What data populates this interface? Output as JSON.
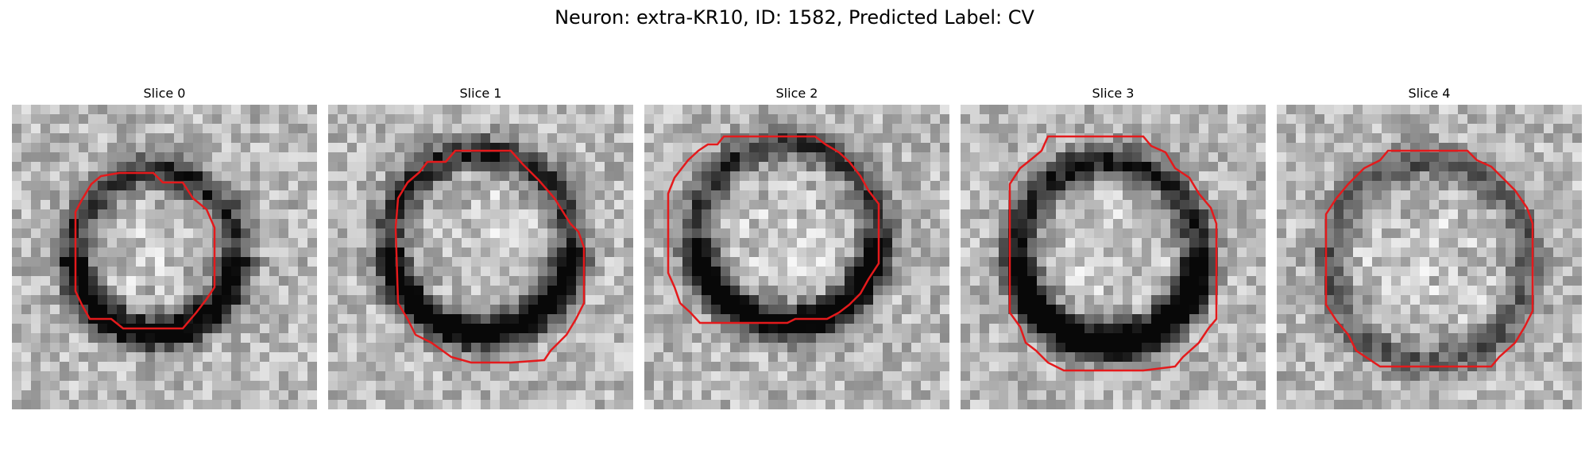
{
  "figure": {
    "title": "Neuron: extra-KR10, ID: 1582, Predicted Label: CV"
  },
  "slices": [
    {
      "title": "Slice 0"
    },
    {
      "title": "Slice 1"
    },
    {
      "title": "Slice 2"
    },
    {
      "title": "Slice 3"
    },
    {
      "title": "Slice 4"
    }
  ],
  "colors": {
    "contour": "#e41a1c",
    "background": "#ffffff"
  }
}
